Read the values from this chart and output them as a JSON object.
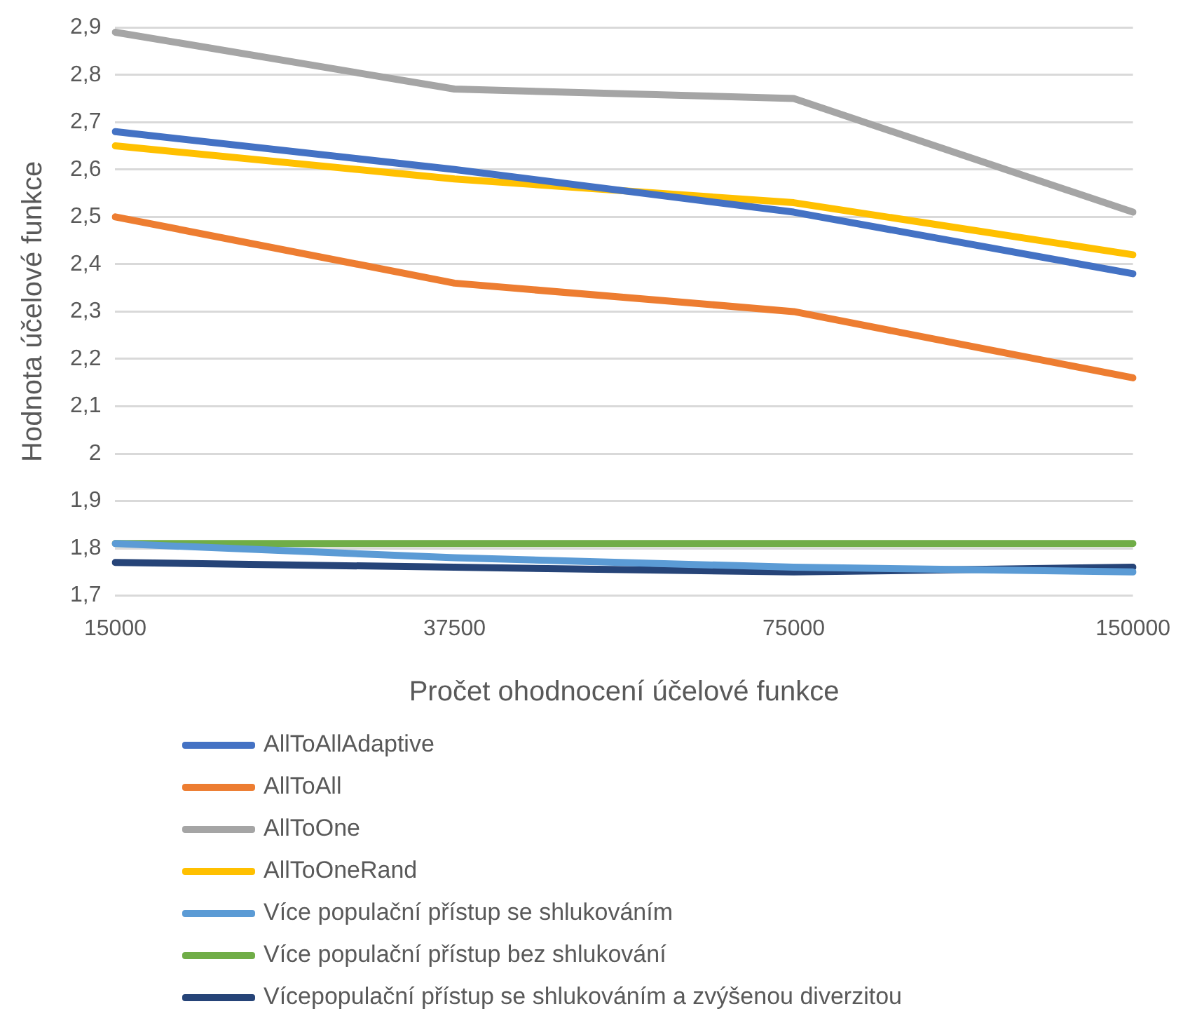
{
  "chart_data": {
    "type": "line",
    "xlabel": "Pročet ohodnocení účelové funkce",
    "ylabel": "Hodnota účelové funkce",
    "categories": [
      "15000",
      "37500",
      "75000",
      "150000"
    ],
    "ylim": [
      1.7,
      2.9
    ],
    "yticks": [
      {
        "value": 1.7,
        "label": "1,7"
      },
      {
        "value": 1.8,
        "label": "1,8"
      },
      {
        "value": 1.9,
        "label": "1,9"
      },
      {
        "value": 2,
        "label": "2"
      },
      {
        "value": 2.1,
        "label": "2,1"
      },
      {
        "value": 2.2,
        "label": "2,2"
      },
      {
        "value": 2.3,
        "label": "2,3"
      },
      {
        "value": 2.4,
        "label": "2,4"
      },
      {
        "value": 2.5,
        "label": "2,5"
      },
      {
        "value": 2.6,
        "label": "2,6"
      },
      {
        "value": 2.7,
        "label": "2,7"
      },
      {
        "value": 2.8,
        "label": "2,8"
      },
      {
        "value": 2.9,
        "label": "2,9"
      }
    ],
    "grid": "y",
    "legend": "bottom",
    "marker": "none",
    "line_style": "solid",
    "series": [
      {
        "name": "AllToAllAdaptive",
        "color": "#4472c4",
        "values": [
          2.68,
          2.6,
          2.51,
          2.38
        ]
      },
      {
        "name": "AllToAll",
        "color": "#ed7d31",
        "values": [
          2.5,
          2.36,
          2.3,
          2.16
        ]
      },
      {
        "name": "AllToOne",
        "color": "#a5a5a5",
        "values": [
          2.89,
          2.77,
          2.75,
          2.51
        ]
      },
      {
        "name": "AllToOneRand",
        "color": "#ffc000",
        "values": [
          2.65,
          2.58,
          2.53,
          2.42
        ]
      },
      {
        "name": "Více populační přístup se shlukováním",
        "color": "#5b9bd5",
        "values": [
          1.81,
          1.78,
          1.76,
          1.75
        ]
      },
      {
        "name": "Více populační přístup bez shlukování",
        "color": "#70ad47",
        "values": [
          1.81,
          1.81,
          1.81,
          1.81
        ]
      },
      {
        "name": "Vícepopulační přístup se shlukováním a zvýšenou diverzitou",
        "color": "#264478",
        "values": [
          1.77,
          1.76,
          1.75,
          1.76
        ]
      }
    ]
  }
}
